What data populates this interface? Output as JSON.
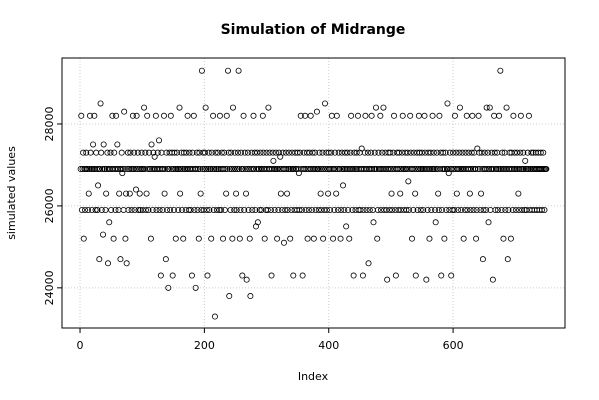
{
  "chart_data": {
    "type": "scatter",
    "title": "Simulation of Midrange",
    "x_label": "Index",
    "y_label": "simulated values",
    "xlim": [
      -29,
      780
    ],
    "ylim": [
      23020,
      29610
    ],
    "xticks": [
      0,
      200,
      400,
      600
    ],
    "yticks": [
      24000,
      26000,
      28000
    ],
    "grid": true,
    "color": "#000000",
    "values": [
      26900,
      28200,
      25900,
      26900,
      27300,
      25200,
      26900,
      25900,
      26900,
      27300,
      26900,
      26900,
      25900,
      26300,
      26900,
      28200,
      27300,
      26900,
      25900,
      26900,
      27500,
      26900,
      28200,
      26900,
      25900,
      27300,
      26900,
      25900,
      26500,
      26900,
      24700,
      26900,
      28500,
      27300,
      25900,
      26900,
      25300,
      27500,
      26900,
      26900,
      25900,
      26300,
      26900,
      27300,
      24600,
      26900,
      25600,
      26900,
      27300,
      25900,
      26900,
      28200,
      26900,
      25200,
      27300,
      26900,
      25900,
      28200,
      26900,
      27500,
      26900,
      25900,
      26300,
      26900,
      24700,
      26900,
      27300,
      26800,
      26900,
      25900,
      28300,
      26900,
      25200,
      26300,
      24600,
      26900,
      27300,
      25900,
      26900,
      26300,
      27300,
      26900,
      25900,
      26900,
      28200,
      26900,
      27300,
      25900,
      26900,
      26400,
      28200,
      26900,
      27300,
      25900,
      26900,
      26300,
      25900,
      26900,
      27300,
      26900,
      25900,
      26900,
      28400,
      26900,
      27300,
      25900,
      26300,
      28200,
      26900,
      25900,
      27300,
      26900,
      26900,
      25200,
      27500,
      26900,
      25900,
      27300,
      26900,
      27200,
      26900,
      28200,
      25900,
      26900,
      27300,
      26900,
      27600,
      25900,
      26900,
      24300,
      27300,
      26900,
      25900,
      26900,
      28200,
      26300,
      26900,
      24700,
      27300,
      25900,
      26900,
      24000,
      26900,
      27300,
      25900,
      28200,
      26900,
      27300,
      24300,
      26900,
      25900,
      27300,
      26900,
      25200,
      26900,
      27300,
      26900,
      25900,
      26900,
      28400,
      26300,
      26900,
      27300,
      25900,
      26900,
      25200,
      27300,
      26900,
      26900,
      25900,
      27300,
      26900,
      28200,
      26900,
      25900,
      27300,
      26900,
      25900,
      26900,
      24300,
      27300,
      26900,
      28200,
      25900,
      26900,
      24000,
      26900,
      27300,
      25900,
      26900,
      25200,
      27300,
      26900,
      26300,
      25900,
      29300,
      26900,
      27300,
      25900,
      26900,
      27300,
      28400,
      26900,
      25900,
      24300,
      26900,
      27300,
      25900,
      26900,
      26900,
      25200,
      27300,
      26900,
      28200,
      25900,
      26900,
      23300,
      27300,
      26900,
      25900,
      26900,
      27300,
      26900,
      25900,
      28200,
      26900,
      25900,
      27300,
      26900,
      25200,
      26900,
      27300,
      25900,
      26900,
      26300,
      28200,
      26900,
      29300,
      27300,
      23800,
      26900,
      25900,
      27300,
      26900,
      25200,
      28400,
      26900,
      25900,
      27300,
      26900,
      26300,
      25900,
      26900,
      27300,
      29300,
      26900,
      25200,
      25900,
      27300,
      26900,
      24300,
      26900,
      28200,
      25900,
      27300,
      26900,
      26300,
      24200,
      26900,
      27300,
      25900,
      26900,
      25200,
      23800,
      26900,
      27300,
      25900,
      26900,
      28200,
      26900,
      27300,
      25900,
      25500,
      26900,
      27300,
      25600,
      26900,
      26900,
      25900,
      27300,
      26900,
      25900,
      26900,
      28200,
      27300,
      26900,
      25200,
      26900,
      25900,
      27300,
      26900,
      25900,
      28400,
      26900,
      27300,
      26900,
      25900,
      24300,
      26900,
      27300,
      27100,
      26900,
      25900,
      26900,
      27300,
      26900,
      25200,
      26900,
      25900,
      27300,
      26900,
      27200,
      26300,
      26900,
      25900,
      27300,
      26900,
      25100,
      26900,
      25900,
      27300,
      26900,
      26300,
      25900,
      26900,
      27300,
      26900,
      25200,
      26900,
      25900,
      27300,
      26900,
      24300,
      26900,
      25900,
      27300,
      26900,
      26900,
      25900,
      27300,
      26900,
      26800,
      25900,
      27300,
      28200,
      26900,
      25900,
      24300,
      26900,
      27300,
      26900,
      28200,
      25900,
      26900,
      27300,
      25200,
      26900,
      25900,
      27300,
      26900,
      28200,
      26900,
      25900,
      27300,
      26900,
      25200,
      26900,
      27300,
      25900,
      26900,
      28300,
      26900,
      26900,
      25900,
      27300,
      26900,
      26300,
      25900,
      26900,
      27300,
      25200,
      26900,
      25900,
      28500,
      26900,
      27300,
      25900,
      26900,
      26300,
      27300,
      26900,
      25900,
      26900,
      27300,
      28200,
      26900,
      25200,
      26900,
      25900,
      27300,
      26900,
      26300,
      28200,
      26900,
      25900,
      27300,
      26900,
      26900,
      25200,
      25900,
      27300,
      26900,
      26500,
      26900,
      25900,
      27300,
      26900,
      25500,
      26900,
      27300,
      25900,
      26900,
      25200,
      26900,
      27300,
      28200,
      26900,
      25900,
      26900,
      24300,
      27300,
      26900,
      25900,
      26900,
      27300,
      26900,
      28200,
      25900,
      26900,
      27300,
      25900,
      26900,
      27400,
      26900,
      24300,
      25900,
      26900,
      27300,
      28200,
      26900,
      25900,
      26900,
      27300,
      24600,
      26900,
      25900,
      26900,
      27300,
      28200,
      26900,
      25900,
      25600,
      26900,
      27300,
      26900,
      28400,
      26900,
      25200,
      25900,
      27300,
      26900,
      26900,
      28200,
      25900,
      26900,
      27300,
      26900,
      28400,
      25900,
      26900,
      27300,
      26900,
      25900,
      24200,
      26900,
      27300,
      26900,
      25900,
      27300,
      26900,
      26300,
      25900,
      26900,
      27300,
      28200,
      26900,
      25900,
      24300,
      26900,
      27300,
      26900,
      25900,
      27300,
      26900,
      26300,
      25900,
      26900,
      27300,
      28200,
      26900,
      25900,
      26900,
      27300,
      26900,
      25900,
      26900,
      27300,
      26600,
      25900,
      26900,
      28200,
      27300,
      26900,
      25200,
      26900,
      25900,
      27300,
      26900,
      26300,
      24300,
      26900,
      27300,
      25900,
      26900,
      28200,
      27300,
      26900,
      25900,
      26900,
      27300,
      26900,
      25900,
      26900,
      28200,
      27300,
      26900,
      24200,
      26900,
      25900,
      27300,
      26900,
      25200,
      26900,
      27300,
      25900,
      26900,
      28200,
      26900,
      27300,
      26900,
      25900,
      25600,
      26900,
      27300,
      26900,
      26300,
      25900,
      28200,
      26900,
      27300,
      24300,
      25900,
      26900,
      27300,
      26900,
      25200,
      26900,
      27300,
      25900,
      26900,
      28500,
      26900,
      26800,
      25900,
      27300,
      26900,
      24300,
      26900,
      25900,
      27300,
      26900,
      25900,
      28200,
      26900,
      27300,
      26300,
      26900,
      25900,
      26900,
      27300,
      28400,
      26900,
      25900,
      26900,
      27300,
      26900,
      25200,
      26900,
      25900,
      27300,
      26900,
      28200,
      25900,
      26900,
      27300,
      26900,
      26300,
      25900,
      26900,
      27300,
      28200,
      26900,
      25900,
      27300,
      26900,
      26900,
      25200,
      25900,
      27400,
      26900,
      28200,
      27300,
      26900,
      25900,
      26300,
      27300,
      26900,
      24700,
      25900,
      26900,
      27300,
      26900,
      25900,
      28400,
      26900,
      27300,
      25600,
      26900,
      28400,
      25900,
      26900,
      27300,
      26900,
      24200,
      26900,
      28200,
      27300,
      25900,
      26900,
      26900,
      27300,
      25900,
      26900,
      28200,
      26900,
      29300,
      26900,
      25900,
      27300,
      26900,
      25200,
      26900,
      27300,
      25900,
      26900,
      28400,
      26900,
      24700,
      25900,
      26900,
      27300,
      26900,
      25200,
      27300,
      26900,
      25900,
      28200,
      26900,
      27300,
      26900,
      25900,
      26900,
      27300,
      26900,
      26300,
      25900,
      26900,
      27300,
      28200,
      26900,
      25900,
      26900,
      27300,
      26900,
      25900,
      27100,
      26900,
      25900,
      26900,
      27300,
      26900,
      28200,
      25900,
      26900,
      26900,
      27300,
      25900,
      26900,
      27300,
      26900,
      25900,
      26900,
      27300,
      26900,
      25900,
      26900,
      27300,
      26900,
      25900,
      26900,
      27300,
      26900,
      25900,
      26900,
      27300,
      26900,
      25900,
      26900,
      26900,
      26900
    ]
  }
}
